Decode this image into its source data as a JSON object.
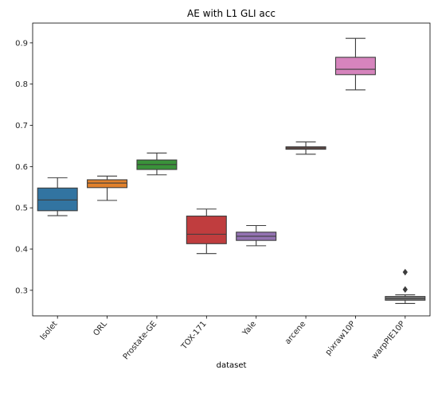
{
  "chart_data": {
    "type": "box",
    "title": "AE with L1 GLI acc",
    "xlabel": "dataset",
    "ylabel": "",
    "ylim": [
      0.238,
      0.948
    ],
    "yticks": [
      0.3,
      0.4,
      0.5,
      0.6,
      0.7,
      0.8,
      0.9
    ],
    "ytick_labels": [
      "0.3",
      "0.4",
      "0.5",
      "0.6",
      "0.7",
      "0.8",
      "0.9"
    ],
    "grid": false,
    "categories": [
      "Isolet",
      "ORL",
      "Prostate-GE",
      "TOX-171",
      "Yale",
      "arcene",
      "pixraw10P",
      "warpPIE10P"
    ],
    "boxes": [
      {
        "category": "Isolet",
        "color": "#3274a1",
        "whisker_low": 0.481,
        "q1": 0.493,
        "median": 0.519,
        "q3": 0.548,
        "whisker_high": 0.573,
        "outliers": []
      },
      {
        "category": "ORL",
        "color": "#e1812c",
        "whisker_low": 0.518,
        "q1": 0.549,
        "median": 0.56,
        "q3": 0.568,
        "whisker_high": 0.577,
        "outliers": []
      },
      {
        "category": "Prostate-GE",
        "color": "#3a923a",
        "whisker_low": 0.58,
        "q1": 0.593,
        "median": 0.605,
        "q3": 0.616,
        "whisker_high": 0.633,
        "outliers": []
      },
      {
        "category": "TOX-171",
        "color": "#c03d3e",
        "whisker_low": 0.389,
        "q1": 0.413,
        "median": 0.436,
        "q3": 0.48,
        "whisker_high": 0.497,
        "outliers": []
      },
      {
        "category": "Yale",
        "color": "#9372b2",
        "whisker_low": 0.408,
        "q1": 0.421,
        "median": 0.431,
        "q3": 0.441,
        "whisker_high": 0.457,
        "outliers": []
      },
      {
        "category": "arcene",
        "color": "#845b53",
        "whisker_low": 0.63,
        "q1": 0.642,
        "median": 0.645,
        "q3": 0.648,
        "whisker_high": 0.66,
        "outliers": []
      },
      {
        "category": "pixraw10P",
        "color": "#d684bd",
        "whisker_low": 0.786,
        "q1": 0.823,
        "median": 0.836,
        "q3": 0.865,
        "whisker_high": 0.911,
        "outliers": []
      },
      {
        "category": "warpPIE10P",
        "color": "#7f7f7f",
        "whisker_low": 0.268,
        "q1": 0.276,
        "median": 0.28,
        "q3": 0.285,
        "whisker_high": 0.289,
        "outliers": [
          0.302,
          0.344
        ]
      }
    ]
  }
}
